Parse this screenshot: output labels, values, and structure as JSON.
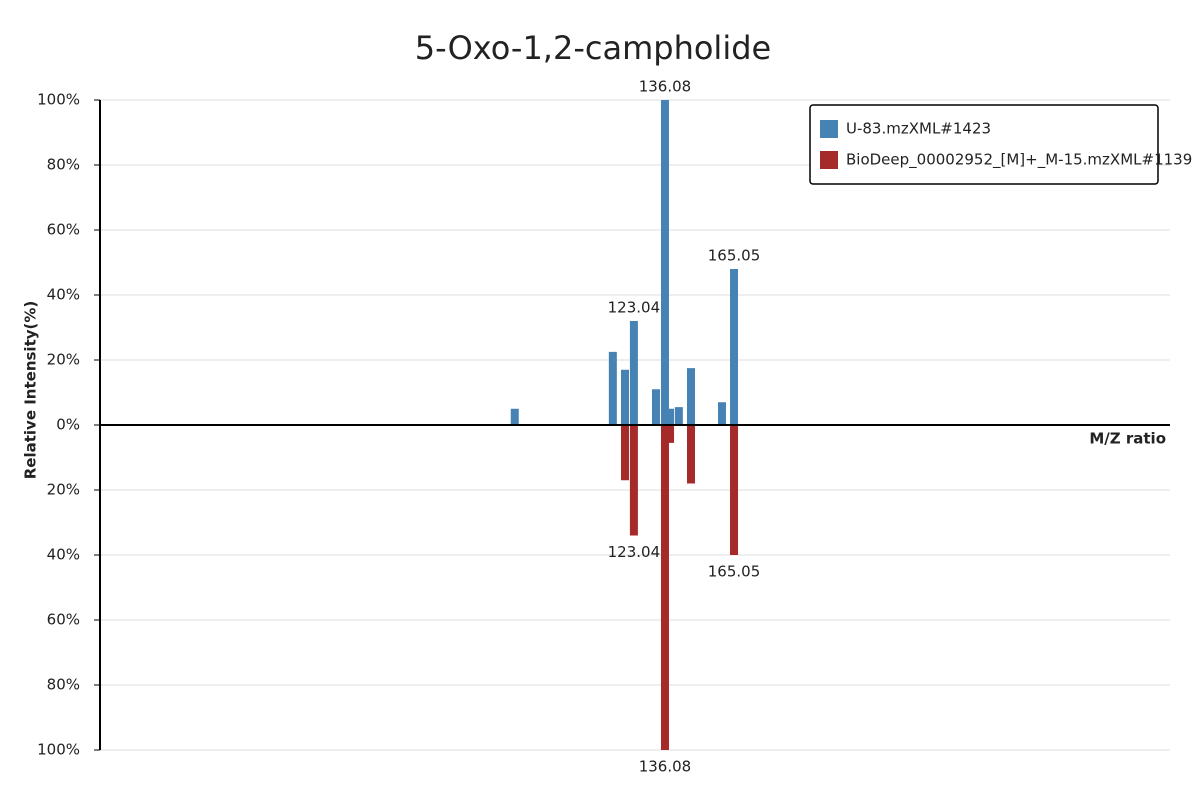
{
  "chart_data": {
    "type": "mirror-spectrum",
    "title": "5-Oxo-1,2-campholide",
    "x_label": "M/Z ratio",
    "y_label": "Relative Intensity(%)",
    "xlim": [
      -101,
      348
    ],
    "ylim": [
      -100,
      100
    ],
    "yticks": [
      {
        "value": 100,
        "label": "100%"
      },
      {
        "value": 80,
        "label": "80%"
      },
      {
        "value": 60,
        "label": "60%"
      },
      {
        "value": 40,
        "label": "40%"
      },
      {
        "value": 20,
        "label": "20%"
      },
      {
        "value": 0,
        "label": "0%"
      },
      {
        "value": -20,
        "label": "20%"
      },
      {
        "value": -40,
        "label": "40%"
      },
      {
        "value": -60,
        "label": "60%"
      },
      {
        "value": -80,
        "label": "80%"
      },
      {
        "value": -100,
        "label": "100%"
      }
    ],
    "grid": true,
    "legend": "top-right",
    "series": [
      {
        "name": "U-83.mzXML#1423",
        "color": "#4682b4",
        "x": [
          73.05,
          114.2,
          119.3,
          123.04,
          132.3,
          136.08,
          138.2,
          141.9,
          147.0,
          160.0,
          165.05
        ],
        "values": [
          5,
          22.5,
          17,
          32,
          11,
          100,
          5,
          5.5,
          17.5,
          7,
          48
        ]
      },
      {
        "name": "BioDeep_00002952_[M]+_M-15.mzXML#1139",
        "color": "#a52a2a",
        "x": [
          119.3,
          123.04,
          136.08,
          138.2,
          147.0,
          165.05
        ],
        "values": [
          -17,
          -34,
          -100,
          -5.5,
          -18,
          -40
        ]
      }
    ]
  }
}
